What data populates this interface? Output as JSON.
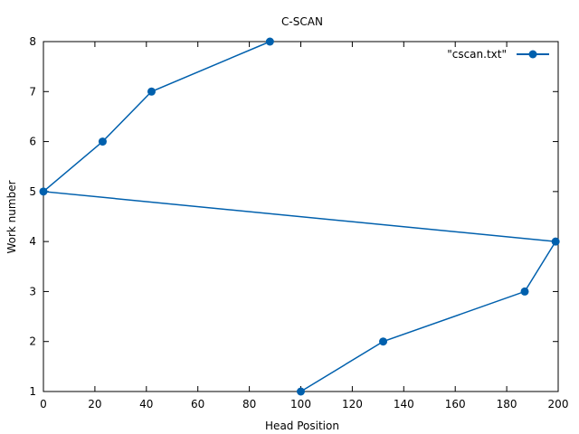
{
  "chart_data": {
    "type": "line",
    "title": "C-SCAN",
    "xlabel": "Head Position",
    "ylabel": "Work number",
    "xlim": [
      0,
      200
    ],
    "ylim": [
      1,
      8
    ],
    "xticks": [
      0,
      20,
      40,
      60,
      80,
      100,
      120,
      140,
      160,
      180,
      200
    ],
    "yticks": [
      1,
      2,
      3,
      4,
      5,
      6,
      7,
      8
    ],
    "grid": false,
    "legend_position": "top-right",
    "series": [
      {
        "name": "\"cscan.txt\"",
        "color": "#0060ad",
        "marker": "circle",
        "points": [
          {
            "x": 100,
            "y": 1
          },
          {
            "x": 132,
            "y": 2
          },
          {
            "x": 187,
            "y": 3
          },
          {
            "x": 199,
            "y": 4
          },
          {
            "x": 0,
            "y": 5
          },
          {
            "x": 23,
            "y": 6
          },
          {
            "x": 42,
            "y": 7
          },
          {
            "x": 88,
            "y": 8
          }
        ]
      }
    ]
  }
}
